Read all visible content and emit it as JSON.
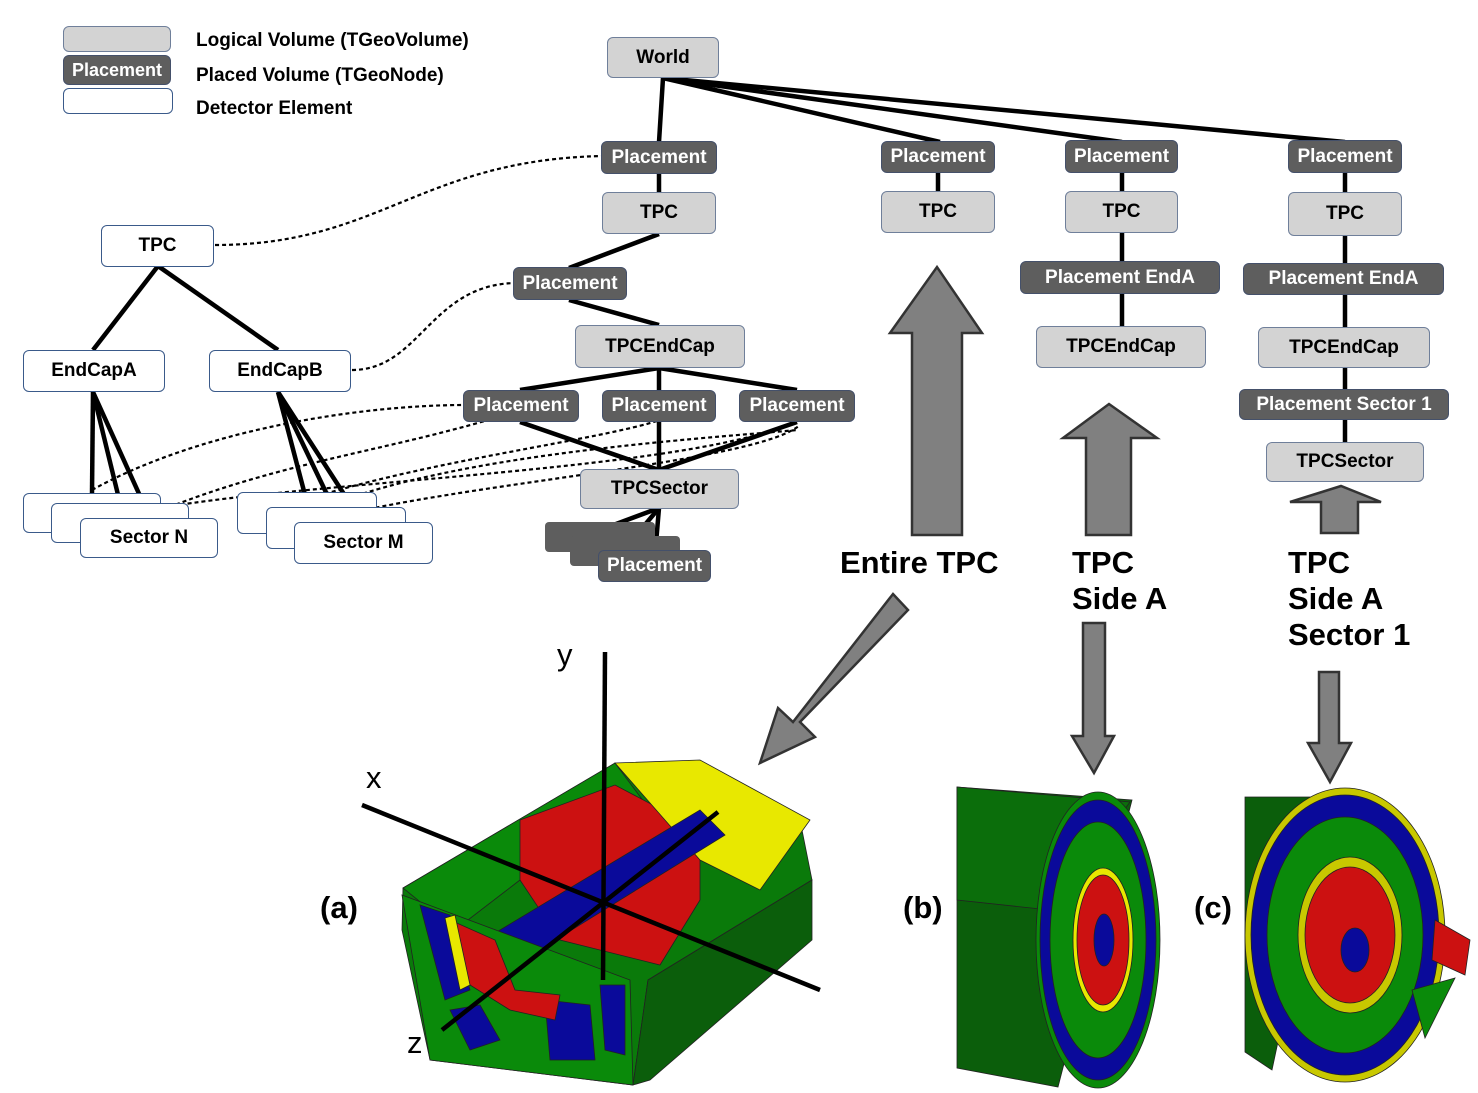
{
  "legend": {
    "logical_volume": "Logical Volume  (TGeoVolume)",
    "placed_volume": "Placed Volume   (TGeoNode)",
    "detector_element": "Detector Element",
    "placement_sample": "Placement"
  },
  "detector_tree": {
    "root": "TPC",
    "endcap_a": "EndCapA",
    "endcap_b": "EndCapB",
    "sector_n": "Sector N",
    "sector_m": "Sector M"
  },
  "geometry_tree": {
    "world": "World",
    "placement": "Placement",
    "tpc": "TPC",
    "tpc_endcap": "TPCEndCap",
    "tpc_sector": "TPCSector"
  },
  "view_b": {
    "placement_end_a": "Placement EndA",
    "tpc_endcap": "TPCEndCap"
  },
  "view_c": {
    "placement_end_a": "Placement EndA",
    "tpc_endcap": "TPCEndCap",
    "placement_sector_1": "Placement Sector 1",
    "tpc_sector": "TPCSector"
  },
  "captions": {
    "entire_tpc": "Entire TPC",
    "side_a_line1": "TPC",
    "side_a_line2": "Side A",
    "sector1_line1": "TPC",
    "sector1_line2": "Side A",
    "sector1_line3": "Sector 1"
  },
  "panels": {
    "a": "(a)",
    "b": "(b)",
    "c": "(c)"
  },
  "axes": {
    "x": "x",
    "y": "y",
    "z": "z"
  },
  "colors": {
    "logical_fill": "#d3d3d3",
    "placed_fill": "#5e5e5e",
    "arrow_fill": "#808080",
    "green": "#0a8a0a",
    "dark_green": "#0a5a0a",
    "blue": "#0a0a9a",
    "red": "#cc1111",
    "yellow": "#e8e800"
  }
}
